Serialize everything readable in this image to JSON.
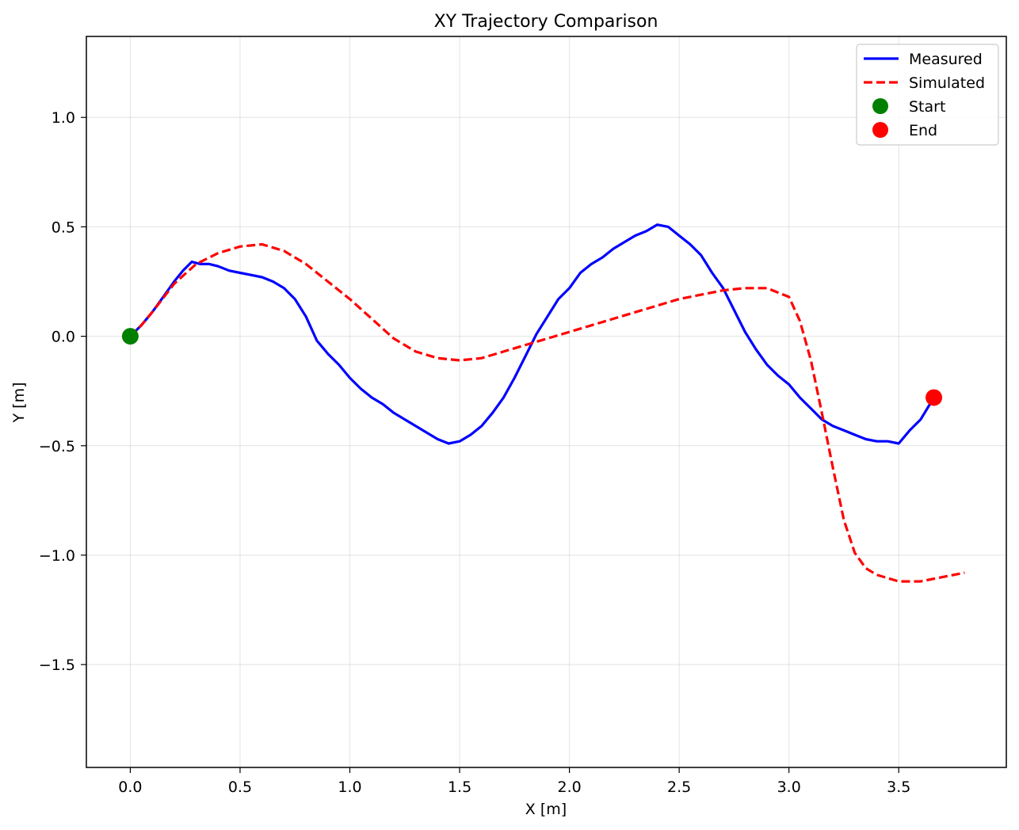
{
  "chart_data": {
    "type": "line",
    "title": "XY Trajectory Comparison",
    "xlabel": "X [m]",
    "ylabel": "Y [m]",
    "xlim": [
      -0.2,
      3.99
    ],
    "ylim": [
      -1.97,
      1.37
    ],
    "xticks": [
      0.0,
      0.5,
      1.0,
      1.5,
      2.0,
      2.5,
      3.0,
      3.5
    ],
    "xtick_labels": [
      "0.0",
      "0.5",
      "1.0",
      "1.5",
      "2.0",
      "2.5",
      "3.0",
      "3.5"
    ],
    "yticks": [
      1.0,
      0.5,
      0.0,
      -0.5,
      -1.0,
      -1.5
    ],
    "ytick_labels": [
      "1.0",
      "0.5",
      "0.0",
      "−0.5",
      "−1.0",
      "−1.5"
    ],
    "grid": true,
    "legend_position": "top-right",
    "series": [
      {
        "name": "Measured",
        "style": "solid",
        "color": "#0000ff",
        "x": [
          0.0,
          0.05,
          0.1,
          0.15,
          0.2,
          0.24,
          0.28,
          0.32,
          0.36,
          0.4,
          0.45,
          0.5,
          0.55,
          0.6,
          0.65,
          0.7,
          0.75,
          0.8,
          0.85,
          0.9,
          0.95,
          1.0,
          1.05,
          1.1,
          1.15,
          1.2,
          1.25,
          1.3,
          1.35,
          1.4,
          1.45,
          1.5,
          1.55,
          1.6,
          1.65,
          1.7,
          1.75,
          1.8,
          1.85,
          1.9,
          1.95,
          2.0,
          2.05,
          2.1,
          2.15,
          2.2,
          2.25,
          2.3,
          2.35,
          2.4,
          2.45,
          2.5,
          2.55,
          2.6,
          2.65,
          2.7,
          2.75,
          2.8,
          2.85,
          2.9,
          2.95,
          3.0,
          3.05,
          3.1,
          3.15,
          3.2,
          3.25,
          3.3,
          3.35,
          3.4,
          3.45,
          3.5,
          3.55,
          3.6,
          3.66
        ],
        "y": [
          0.0,
          0.05,
          0.11,
          0.18,
          0.25,
          0.3,
          0.34,
          0.33,
          0.33,
          0.32,
          0.3,
          0.29,
          0.28,
          0.27,
          0.25,
          0.22,
          0.17,
          0.09,
          -0.02,
          -0.08,
          -0.13,
          -0.19,
          -0.24,
          -0.28,
          -0.31,
          -0.35,
          -0.38,
          -0.41,
          -0.44,
          -0.47,
          -0.49,
          -0.48,
          -0.45,
          -0.41,
          -0.35,
          -0.28,
          -0.19,
          -0.09,
          0.01,
          0.09,
          0.17,
          0.22,
          0.29,
          0.33,
          0.36,
          0.4,
          0.43,
          0.46,
          0.48,
          0.51,
          0.5,
          0.46,
          0.42,
          0.37,
          0.29,
          0.22,
          0.12,
          0.02,
          -0.06,
          -0.13,
          -0.18,
          -0.22,
          -0.28,
          -0.33,
          -0.38,
          -0.41,
          -0.43,
          -0.45,
          -0.47,
          -0.48,
          -0.48,
          -0.49,
          -0.43,
          -0.38,
          -0.28
        ]
      },
      {
        "name": "Simulated",
        "style": "dashed",
        "color": "#ff0000",
        "x": [
          0.0,
          0.05,
          0.1,
          0.2,
          0.3,
          0.4,
          0.5,
          0.6,
          0.7,
          0.8,
          0.9,
          1.0,
          1.1,
          1.2,
          1.3,
          1.4,
          1.5,
          1.6,
          1.7,
          1.8,
          1.9,
          2.0,
          2.1,
          2.2,
          2.3,
          2.4,
          2.5,
          2.6,
          2.7,
          2.8,
          2.9,
          3.0,
          3.05,
          3.1,
          3.15,
          3.2,
          3.25,
          3.3,
          3.35,
          3.4,
          3.5,
          3.6,
          3.7,
          3.8
        ],
        "y": [
          0.0,
          0.05,
          0.11,
          0.24,
          0.33,
          0.38,
          0.41,
          0.42,
          0.39,
          0.33,
          0.25,
          0.17,
          0.08,
          -0.01,
          -0.07,
          -0.1,
          -0.11,
          -0.1,
          -0.07,
          -0.04,
          -0.01,
          0.02,
          0.05,
          0.08,
          0.11,
          0.14,
          0.17,
          0.19,
          0.21,
          0.22,
          0.22,
          0.18,
          0.07,
          -0.11,
          -0.35,
          -0.6,
          -0.84,
          -0.99,
          -1.06,
          -1.09,
          -1.12,
          -1.12,
          -1.1,
          -1.08
        ]
      }
    ],
    "markers": [
      {
        "name": "Start",
        "x": 0.0,
        "y": 0.0,
        "color": "#008000"
      },
      {
        "name": "End",
        "x": 3.66,
        "y": -0.28,
        "color": "#ff0000"
      }
    ]
  }
}
